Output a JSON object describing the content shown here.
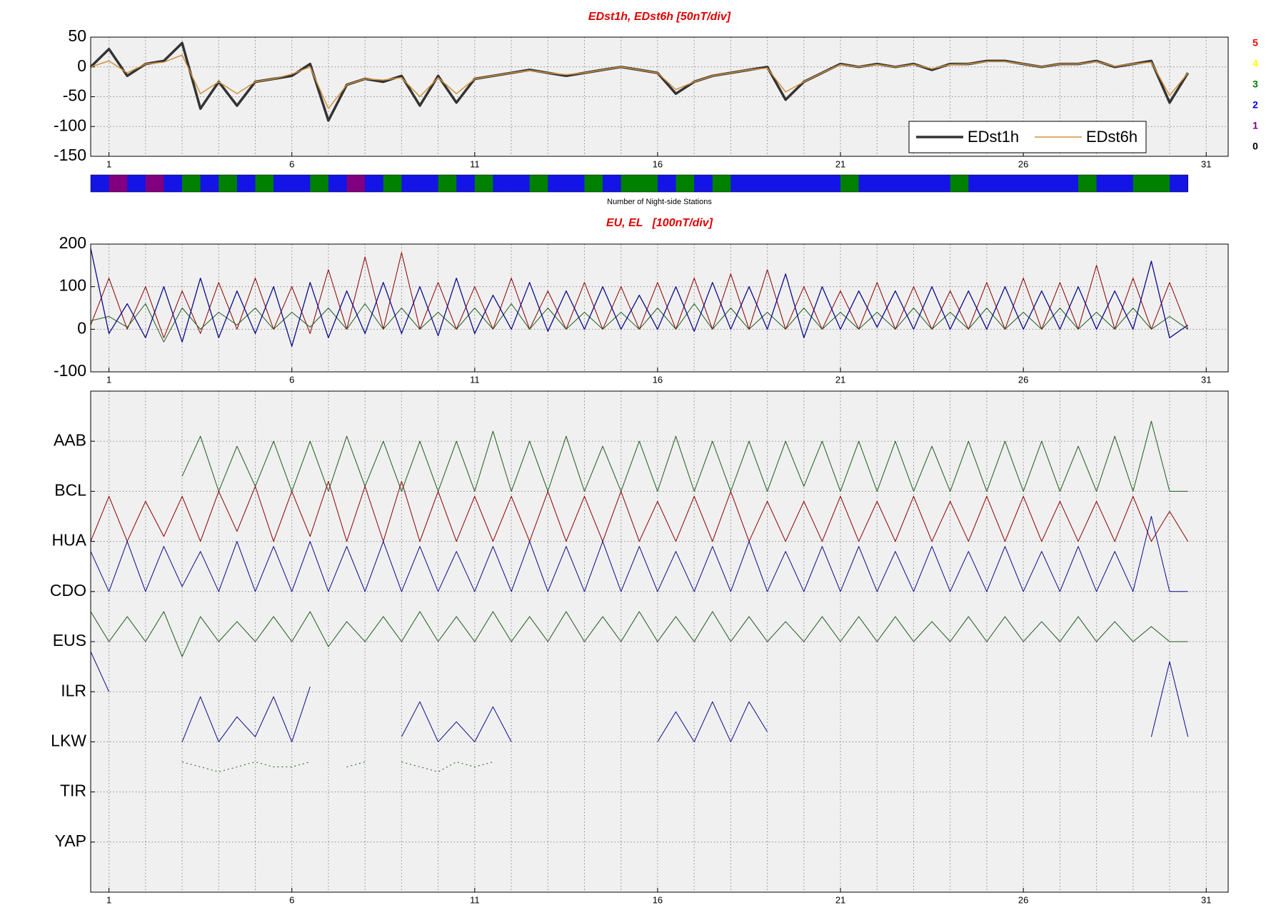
{
  "chart_data": [
    {
      "type": "line",
      "title": "EDst1h, EDst6h [50nT/div]",
      "x": [
        0.5,
        1,
        1.5,
        2,
        2.5,
        3,
        3.5,
        4,
        4.5,
        5,
        5.5,
        6,
        6.5,
        7,
        7.5,
        8,
        8.5,
        9,
        9.5,
        10,
        10.5,
        11,
        11.5,
        12,
        12.5,
        13,
        13.5,
        14,
        14.5,
        15,
        15.5,
        16,
        16.5,
        17,
        17.5,
        18,
        18.5,
        19,
        19.5,
        20,
        20.5,
        21,
        21.5,
        22,
        22.5,
        23,
        23.5,
        24,
        24.5,
        25,
        25.5,
        26,
        26.5,
        27,
        27.5,
        28,
        28.5,
        29,
        29.5,
        30,
        30.5
      ],
      "series": [
        {
          "name": "EDst1h",
          "color": "#333333",
          "width": 3.5,
          "values": [
            0,
            30,
            -15,
            5,
            10,
            40,
            -70,
            -25,
            -65,
            -25,
            -20,
            -15,
            5,
            -90,
            -30,
            -20,
            -25,
            -15,
            -65,
            -15,
            -60,
            -20,
            -15,
            -10,
            -5,
            -10,
            -15,
            -10,
            -5,
            0,
            -5,
            -10,
            -45,
            -25,
            -15,
            -10,
            -5,
            0,
            -55,
            -25,
            -10,
            5,
            0,
            5,
            0,
            5,
            -5,
            5,
            5,
            10,
            10,
            5,
            0,
            5,
            5,
            10,
            0,
            5,
            10,
            -60,
            -10
          ]
        },
        {
          "name": "EDst6h",
          "color": "#d2913c",
          "width": 1.5,
          "values": [
            0,
            10,
            -10,
            5,
            8,
            20,
            -45,
            -25,
            -45,
            -25,
            -20,
            -12,
            0,
            -70,
            -30,
            -20,
            -22,
            -18,
            -50,
            -18,
            -45,
            -20,
            -15,
            -10,
            -6,
            -10,
            -13,
            -10,
            -5,
            0,
            -5,
            -10,
            -38,
            -25,
            -15,
            -10,
            -5,
            -2,
            -42,
            -25,
            -10,
            4,
            0,
            4,
            0,
            4,
            -3,
            4,
            5,
            9,
            9,
            5,
            0,
            5,
            5,
            9,
            1,
            5,
            8,
            -48,
            -10
          ]
        }
      ],
      "xlim": [
        0.5,
        31.6
      ],
      "xticks": [
        1,
        6,
        11,
        16,
        21,
        26,
        31
      ],
      "xminorticks": [
        1,
        2,
        3,
        4,
        5,
        6,
        7,
        8,
        9,
        10,
        11,
        12,
        13,
        14,
        15,
        16,
        17,
        18,
        19,
        20,
        21,
        22,
        23,
        24,
        25,
        26,
        27,
        28,
        29,
        30,
        31
      ],
      "ylim": [
        -150,
        50
      ],
      "yticks": [
        -150,
        -100,
        -50,
        0,
        50
      ],
      "grid": true,
      "legend": "lower right",
      "levels": [
        {
          "value": 5,
          "color": "#ff0000"
        },
        {
          "value": 4,
          "color": "#ffff00"
        },
        {
          "value": 3,
          "color": "#008000"
        },
        {
          "value": 2,
          "color": "#0000ff"
        },
        {
          "value": 1,
          "color": "#800080"
        },
        {
          "value": 0,
          "color": "#000000"
        }
      ]
    },
    {
      "type": "strip",
      "title": "Number of Night-side Stations",
      "bins": [
        0.5,
        1,
        1.5,
        2,
        2.5,
        3,
        3.5,
        4,
        4.5,
        5,
        5.5,
        6,
        6.5,
        7,
        7.5,
        8,
        8.5,
        9,
        9.5,
        10,
        10.5,
        11,
        11.5,
        12,
        12.5,
        13,
        13.5,
        14,
        14.5,
        15,
        15.5,
        16,
        16.5,
        17,
        17.5,
        18,
        18.5,
        19,
        19.5,
        20,
        20.5,
        21,
        21.5,
        22,
        22.5,
        23,
        23.5,
        24,
        24.5,
        25,
        25.5,
        26,
        26.5,
        27,
        27.5,
        28,
        28.5,
        29,
        29.5,
        30,
        30.5
      ],
      "values": [
        2,
        1,
        2,
        1,
        2,
        3,
        2,
        3,
        2,
        3,
        2,
        2,
        3,
        2,
        1,
        2,
        3,
        2,
        2,
        3,
        2,
        3,
        2,
        2,
        3,
        2,
        2,
        3,
        2,
        3,
        3,
        2,
        3,
        2,
        3,
        2,
        2,
        2,
        2,
        2,
        2,
        3,
        2,
        2,
        2,
        2,
        2,
        3,
        2,
        2,
        2,
        2,
        2,
        2,
        3,
        2,
        2,
        3,
        3,
        2
      ]
    },
    {
      "type": "line",
      "title": "EU, EL   [100nT/div]",
      "x": [
        0.5,
        1,
        1.5,
        2,
        2.5,
        3,
        3.5,
        4,
        4.5,
        5,
        5.5,
        6,
        6.5,
        7,
        7.5,
        8,
        8.5,
        9,
        9.5,
        10,
        10.5,
        11,
        11.5,
        12,
        12.5,
        13,
        13.5,
        14,
        14.5,
        15,
        15.5,
        16,
        16.5,
        17,
        17.5,
        18,
        18.5,
        19,
        19.5,
        20,
        20.5,
        21,
        21.5,
        22,
        22.5,
        23,
        23.5,
        24,
        24.5,
        25,
        25.5,
        26,
        26.5,
        27,
        27.5,
        28,
        28.5,
        29,
        29.5,
        30,
        30.5
      ],
      "series": [
        {
          "color": "#8b0000",
          "width": 1,
          "values": [
            10,
            120,
            0,
            100,
            -20,
            90,
            -10,
            110,
            0,
            120,
            0,
            100,
            -10,
            140,
            0,
            170,
            0,
            180,
            0,
            110,
            0,
            100,
            0,
            120,
            0,
            90,
            0,
            110,
            0,
            100,
            0,
            110,
            0,
            120,
            0,
            130,
            0,
            140,
            0,
            100,
            0,
            90,
            0,
            110,
            0,
            100,
            0,
            90,
            0,
            110,
            0,
            120,
            0,
            110,
            0,
            150,
            0,
            120,
            0,
            110,
            0
          ]
        },
        {
          "color": "#1e5c1e",
          "width": 1,
          "values": [
            20,
            30,
            5,
            60,
            -30,
            50,
            0,
            40,
            10,
            50,
            0,
            40,
            5,
            50,
            0,
            60,
            0,
            50,
            0,
            40,
            0,
            50,
            0,
            60,
            0,
            50,
            0,
            40,
            0,
            40,
            0,
            50,
            0,
            60,
            0,
            50,
            0,
            40,
            0,
            50,
            0,
            40,
            0,
            40,
            0,
            50,
            0,
            40,
            0,
            50,
            0,
            40,
            0,
            50,
            0,
            40,
            0,
            50,
            0,
            30,
            0
          ]
        },
        {
          "color": "#0b0b8a",
          "width": 1.3,
          "values": [
            190,
            -10,
            60,
            -20,
            100,
            -30,
            120,
            -20,
            90,
            -10,
            100,
            -40,
            110,
            -20,
            90,
            -10,
            110,
            -10,
            100,
            -15,
            120,
            -10,
            80,
            0,
            110,
            -5,
            90,
            0,
            100,
            0,
            80,
            0,
            100,
            -5,
            110,
            0,
            100,
            0,
            130,
            -20,
            100,
            0,
            90,
            5,
            90,
            0,
            100,
            0,
            90,
            0,
            100,
            0,
            90,
            0,
            100,
            0,
            90,
            0,
            160,
            -20,
            10
          ]
        }
      ],
      "xlim": [
        0.5,
        31.6
      ],
      "xticks": [
        1,
        6,
        11,
        16,
        21,
        26,
        31
      ],
      "xminorticks": [
        1,
        2,
        3,
        4,
        5,
        6,
        7,
        8,
        9,
        10,
        11,
        12,
        13,
        14,
        15,
        16,
        17,
        18,
        19,
        20,
        21,
        22,
        23,
        24,
        25,
        26,
        27,
        28,
        29,
        30,
        31
      ],
      "ylim": [
        -100,
        200
      ],
      "yticks": [
        -100,
        0,
        100,
        200
      ],
      "grid": true
    },
    {
      "type": "line",
      "x": [
        0.5,
        1,
        1.5,
        2,
        2.5,
        3,
        3.5,
        4,
        4.5,
        5,
        5.5,
        6,
        6.5,
        7,
        7.5,
        8,
        8.5,
        9,
        9.5,
        10,
        10.5,
        11,
        11.5,
        12,
        12.5,
        13,
        13.5,
        14,
        14.5,
        15,
        15.5,
        16,
        16.5,
        17,
        17.5,
        18,
        18.5,
        19,
        19.5,
        20,
        20.5,
        21,
        21.5,
        22,
        22.5,
        23,
        23.5,
        24,
        24.5,
        25,
        25.5,
        26,
        26.5,
        27,
        27.5,
        28,
        28.5,
        29,
        29.5,
        30,
        30.5
      ],
      "series": [
        {
          "color": "#1e5c1e",
          "width": 1,
          "values": [
            null,
            null,
            null,
            null,
            null,
            8.3,
            9.1,
            8.0,
            8.9,
            8.1,
            9.0,
            8.0,
            9.0,
            8.0,
            9.1,
            8.1,
            9.0,
            8.0,
            9.0,
            8.0,
            9.0,
            8.0,
            9.2,
            8.0,
            9.0,
            8.0,
            9.1,
            8.0,
            8.9,
            8.0,
            9.0,
            8.0,
            9.1,
            8.0,
            9.0,
            8.0,
            9.0,
            8.0,
            9.0,
            8.1,
            9.0,
            8.0,
            9.0,
            8.0,
            9.0,
            8.0,
            8.9,
            8.0,
            9.0,
            8.0,
            9.0,
            8.0,
            9.0,
            8.0,
            8.9,
            8.0,
            9.1,
            8.0,
            9.4,
            8.0,
            8.0
          ]
        },
        {
          "color": "#8b0000",
          "width": 1,
          "values": [
            7.0,
            7.9,
            7.0,
            7.8,
            7.1,
            7.9,
            7.0,
            8.0,
            7.2,
            8.1,
            7.0,
            8.0,
            7.1,
            8.2,
            7.0,
            8.1,
            7.0,
            8.2,
            7.0,
            8.0,
            7.0,
            7.9,
            7.0,
            7.9,
            7.0,
            8.0,
            7.0,
            7.9,
            7.0,
            8.0,
            7.0,
            7.8,
            7.0,
            7.9,
            7.0,
            8.0,
            7.0,
            7.8,
            7.0,
            7.8,
            7.0,
            7.9,
            7.0,
            7.8,
            7.0,
            7.9,
            7.0,
            7.8,
            7.0,
            7.9,
            7.0,
            7.9,
            7.0,
            7.8,
            7.0,
            7.8,
            7.0,
            7.9,
            7.0,
            7.6,
            7.0
          ]
        },
        {
          "color": "#0b0b8a",
          "width": 1,
          "values": [
            6.8,
            6.0,
            7.0,
            6.0,
            6.9,
            6.1,
            6.8,
            6.0,
            7.0,
            6.0,
            6.9,
            6.0,
            7.0,
            6.0,
            6.9,
            6.0,
            7.0,
            6.0,
            6.9,
            6.0,
            6.8,
            6.0,
            6.9,
            6.0,
            7.0,
            6.0,
            6.9,
            6.0,
            7.0,
            6.0,
            6.9,
            6.0,
            6.8,
            6.0,
            6.9,
            6.0,
            7.0,
            6.0,
            6.8,
            6.0,
            6.9,
            6.0,
            6.9,
            6.0,
            6.8,
            6.0,
            6.9,
            6.0,
            6.8,
            6.0,
            6.9,
            6.0,
            6.8,
            6.0,
            6.9,
            6.0,
            6.8,
            6.0,
            7.5,
            6.0,
            6.0
          ]
        },
        {
          "color": "#1e5c1e",
          "width": 1,
          "values": [
            5.6,
            5.0,
            5.5,
            5.0,
            5.6,
            4.7,
            5.5,
            5.0,
            5.4,
            5.0,
            5.5,
            5.0,
            5.6,
            4.9,
            5.4,
            5.0,
            5.5,
            5.0,
            5.6,
            5.0,
            5.5,
            5.0,
            5.6,
            5.0,
            5.5,
            5.0,
            5.6,
            5.0,
            5.5,
            5.0,
            5.6,
            5.0,
            5.5,
            5.0,
            5.6,
            5.0,
            5.5,
            5.0,
            5.4,
            5.0,
            5.5,
            5.0,
            5.5,
            5.0,
            5.5,
            5.0,
            5.4,
            5.0,
            5.5,
            5.0,
            5.5,
            5.0,
            5.4,
            5.0,
            5.5,
            5.0,
            5.4,
            5.0,
            5.3,
            5.0,
            5.0
          ]
        },
        {
          "color": "#0b0b8a",
          "width": 1,
          "values": [
            4.8,
            4.0,
            null,
            null,
            null,
            3.0,
            3.9,
            3.0,
            3.5,
            3.1,
            3.9,
            3.0,
            4.1,
            null,
            null,
            null,
            null,
            3.1,
            3.8,
            3.0,
            3.4,
            3.0,
            3.7,
            3.0,
            null,
            null,
            null,
            null,
            null,
            null,
            null,
            3.0,
            3.6,
            3.0,
            3.8,
            3.0,
            3.8,
            3.2,
            null,
            null,
            null,
            null,
            null,
            null,
            null,
            null,
            null,
            null,
            null,
            null,
            null,
            null,
            null,
            null,
            null,
            null,
            null,
            null,
            3.1,
            4.6,
            3.1
          ]
        },
        {
          "color": "#1e5c1e",
          "width": 1,
          "dashed": true,
          "values": [
            null,
            null,
            null,
            null,
            null,
            2.6,
            2.5,
            2.4,
            2.5,
            2.6,
            2.5,
            2.5,
            2.6,
            null,
            2.5,
            2.6,
            null,
            2.6,
            2.5,
            2.4,
            2.6,
            2.5,
            2.6,
            null,
            null,
            null,
            null,
            null,
            null,
            null,
            null,
            null,
            null,
            null,
            null,
            null,
            null,
            null,
            null,
            null,
            null,
            null,
            null,
            null,
            null,
            null,
            null,
            null,
            null,
            null,
            null,
            null,
            null,
            null,
            null,
            null,
            null,
            null,
            null,
            null,
            null
          ]
        }
      ],
      "xlim": [
        0.5,
        31.6
      ],
      "xticks": [
        1,
        6,
        11,
        16,
        21,
        26,
        31
      ],
      "xminorticks": [
        1,
        2,
        3,
        4,
        5,
        6,
        7,
        8,
        9,
        10,
        11,
        12,
        13,
        14,
        15,
        16,
        17,
        18,
        19,
        20,
        21,
        22,
        23,
        24,
        25,
        26,
        27,
        28,
        29,
        30,
        31
      ],
      "ylim": [
        0,
        10
      ],
      "yticks": [
        {
          "value": 9,
          "label": "AAB"
        },
        {
          "value": 8,
          "label": "BCL"
        },
        {
          "value": 7,
          "label": "HUA"
        },
        {
          "value": 6,
          "label": "CDO"
        },
        {
          "value": 5,
          "label": "EUS"
        },
        {
          "value": 4,
          "label": "ILR"
        },
        {
          "value": 3,
          "label": "LKW"
        },
        {
          "value": 2,
          "label": "TIR"
        },
        {
          "value": 1,
          "label": "YAP"
        }
      ],
      "grid": true
    }
  ]
}
